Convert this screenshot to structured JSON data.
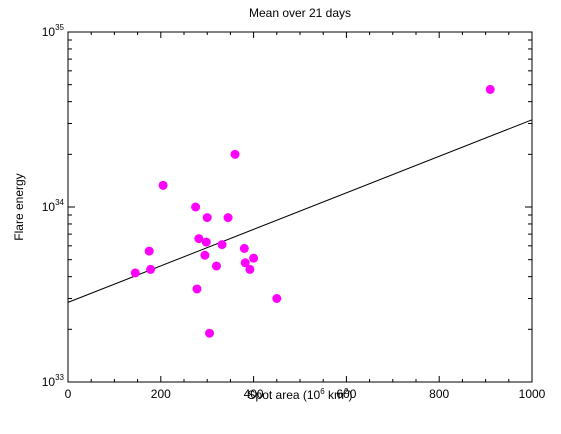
{
  "chart_data": {
    "type": "scatter",
    "title": "Mean over 21 days",
    "xlabel": {
      "main": "Spot area (10",
      "exp": "6",
      "unit": " km",
      "unit_exp": "2",
      "close": ")"
    },
    "ylabel": "Flare energy",
    "xlim": [
      0,
      1000
    ],
    "ylim": [
      1e+33,
      1e+35
    ],
    "yscale": "log",
    "x_ticks": [
      0,
      200,
      400,
      600,
      800,
      1000
    ],
    "x_tick_labels": [
      "0",
      "200",
      "400",
      "600",
      "800",
      "1000"
    ],
    "y_ticks": [
      {
        "value": 1e+33,
        "base": "10",
        "exp": "33"
      },
      {
        "value": 1e+34,
        "base": "10",
        "exp": "34"
      },
      {
        "value": 1e+35,
        "base": "10",
        "exp": "35"
      }
    ],
    "grid": false,
    "marker_color": "#ff00ff",
    "line_color": "#000000",
    "points": [
      {
        "x": 145,
        "y": 4.2e+33
      },
      {
        "x": 175,
        "y": 5.6e+33
      },
      {
        "x": 178,
        "y": 4.4e+33
      },
      {
        "x": 205,
        "y": 1.33e+34
      },
      {
        "x": 275,
        "y": 1e+34
      },
      {
        "x": 278,
        "y": 3.4e+33
      },
      {
        "x": 282,
        "y": 6.6e+33
      },
      {
        "x": 295,
        "y": 5.3e+33
      },
      {
        "x": 298,
        "y": 6.3e+33
      },
      {
        "x": 300,
        "y": 8.7e+33
      },
      {
        "x": 305,
        "y": 1.9e+33
      },
      {
        "x": 320,
        "y": 4.6e+33
      },
      {
        "x": 332,
        "y": 6.1e+33
      },
      {
        "x": 345,
        "y": 8.7e+33
      },
      {
        "x": 360,
        "y": 2e+34
      },
      {
        "x": 380,
        "y": 5.8e+33
      },
      {
        "x": 382,
        "y": 4.8e+33
      },
      {
        "x": 392,
        "y": 4.4e+33
      },
      {
        "x": 400,
        "y": 5.1e+33
      },
      {
        "x": 450,
        "y": 3e+33
      },
      {
        "x": 910,
        "y": 4.7e+34
      }
    ],
    "fit_line": {
      "x": [
        0,
        1000
      ],
      "y": [
        2.85e+33,
        3.15e+34
      ]
    }
  }
}
